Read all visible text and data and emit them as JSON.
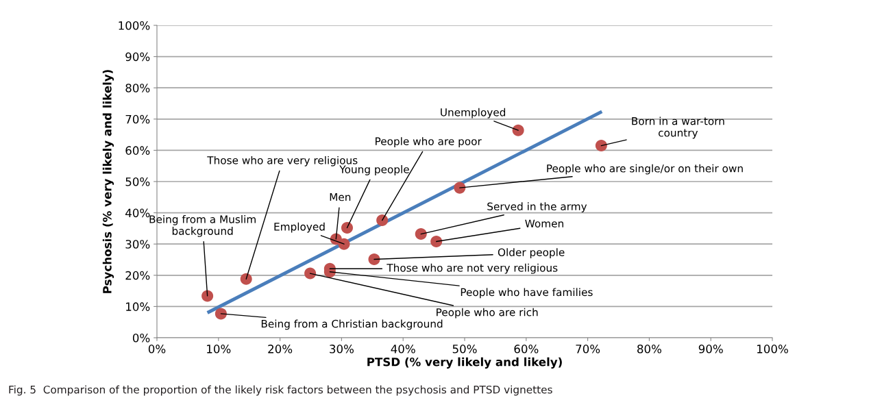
{
  "chart_data": {
    "type": "scatter",
    "xlabel": "PTSD (% very likely and likely)",
    "ylabel": "Psychosis (% very likely and likely)",
    "series": [
      {
        "color": "#c0504d",
        "x": [
          8.2,
          10.4,
          14.5,
          24.9,
          28.1,
          28.1,
          35.3,
          29.1,
          30.4,
          30.9,
          36.6,
          42.9,
          45.4,
          49.2,
          58.7,
          72.2
        ],
        "values": [
          13.4,
          7.7,
          18.8,
          20.6,
          21.1,
          22.1,
          25.1,
          31.6,
          30.0,
          35.2,
          37.6,
          33.2,
          30.8,
          48.0,
          66.4,
          61.5
        ]
      },
      {
        "type": "line",
        "marker": "none",
        "color": "#4a7ebb",
        "x": [
          8.2,
          72.3
        ],
        "values": [
          8.0,
          72.4
        ]
      }
    ],
    "xlim": [
      0,
      100
    ],
    "ylim": [
      0,
      100
    ],
    "xticks": [
      {
        "value": 0,
        "label": "0%"
      },
      {
        "value": 10,
        "label": "10%"
      },
      {
        "value": 20,
        "label": "20%"
      },
      {
        "value": 30,
        "label": "30%"
      },
      {
        "value": 40,
        "label": "40%"
      },
      {
        "value": 50,
        "label": "50%"
      },
      {
        "value": 60,
        "label": "60%"
      },
      {
        "value": 70,
        "label": "70%"
      },
      {
        "value": 80,
        "label": "80%"
      },
      {
        "value": 90,
        "label": "90%"
      },
      {
        "value": 100,
        "label": "100%"
      }
    ],
    "yticks": [
      {
        "value": 0,
        "label": "0%"
      },
      {
        "value": 10,
        "label": "10%"
      },
      {
        "value": 20,
        "label": "20%"
      },
      {
        "value": 30,
        "label": "30%"
      },
      {
        "value": 40,
        "label": "40%"
      },
      {
        "value": 50,
        "label": "50%"
      },
      {
        "value": 60,
        "label": "60%"
      },
      {
        "value": 70,
        "label": "70%"
      },
      {
        "value": 80,
        "label": "80%"
      },
      {
        "value": 90,
        "label": "90%"
      },
      {
        "value": 100,
        "label": "100%"
      }
    ],
    "grid": "y",
    "marker": "circle",
    "legend": false,
    "annotations": [
      {
        "text": "Being from a Muslim\nbackground",
        "x": 8.2,
        "y": 13.4
      },
      {
        "text": "Being from a Christian background",
        "x": 10.4,
        "y": 7.7
      },
      {
        "text": "Those who are very religious",
        "x": 14.5,
        "y": 18.8
      },
      {
        "text": "People who are rich",
        "x": 24.9,
        "y": 20.6
      },
      {
        "text": "People who have families",
        "x": 28.1,
        "y": 21.1
      },
      {
        "text": "Those who are not very religious",
        "x": 28.1,
        "y": 22.1
      },
      {
        "text": "Older people",
        "x": 35.3,
        "y": 25.1
      },
      {
        "text": "Men",
        "x": 29.1,
        "y": 31.6
      },
      {
        "text": "Employed",
        "x": 30.4,
        "y": 30.0
      },
      {
        "text": "Young people",
        "x": 30.9,
        "y": 35.2
      },
      {
        "text": "People who are poor",
        "x": 36.6,
        "y": 37.6
      },
      {
        "text": "Served in the army",
        "x": 42.9,
        "y": 33.2
      },
      {
        "text": "Women",
        "x": 45.4,
        "y": 30.8
      },
      {
        "text": "People who are single/or on their own",
        "x": 49.2,
        "y": 48.0
      },
      {
        "text": "Unemployed",
        "x": 58.7,
        "y": 66.4
      },
      {
        "text": "Born in a war-torn\ncountry",
        "x": 72.2,
        "y": 61.5
      },
      "Fig. 5  Comparison of the proportion of the likely risk factors between the psychosis and PTSD vignettes"
    ]
  }
}
